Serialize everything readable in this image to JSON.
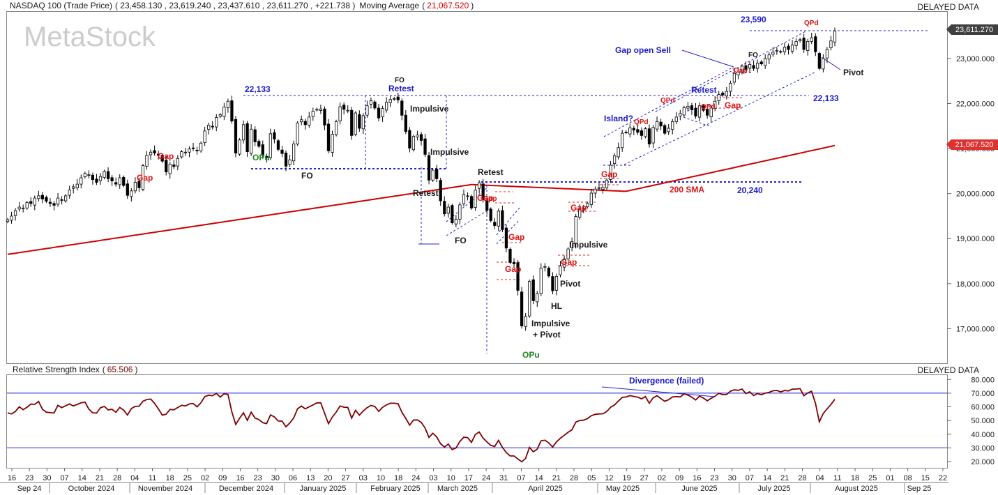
{
  "header": {
    "instrument": "NASDAQ 100 (Trade Price)",
    "ohlc": "( 23,458.130 , 23,619.240 , 23,437.610 , 23,611.270 , +221.738 )",
    "ma_label": "Moving Average",
    "ma_value": "21,067.520",
    "delayed": "DELAYED DATA",
    "watermark": "MetaStock"
  },
  "price_badges": {
    "last": "23,611.270",
    "ma": "21,067.520"
  },
  "rsi_header": {
    "label": "Relative Strength Index",
    "value": "65.506",
    "delayed": "DELAYED DATA"
  },
  "colors": {
    "bull": "#ffffff",
    "bear": "#000000",
    "ma": "#d00000",
    "blue": "#1a1acc",
    "red": "#e01010",
    "green": "#1a8a1a",
    "rsi": "#800000"
  },
  "chart_data": [
    {
      "type": "candlestick",
      "title": "NASDAQ 100 (Trade Price)",
      "ylim": [
        16400,
        24400
      ],
      "y_ticks": [
        "17,000.000",
        "18,000.000",
        "19,000.000",
        "20,000.000",
        "21,000.000",
        "22,000.000",
        "23,000.000"
      ],
      "x_day_labels": [
        "16",
        "23",
        "30",
        "07",
        "14",
        "21",
        "28",
        "04",
        "11",
        "18",
        "25",
        "02",
        "09",
        "16",
        "23",
        "30",
        "06",
        "13",
        "20",
        "27",
        "03",
        "10",
        "18",
        "24",
        "03",
        "10",
        "17",
        "24",
        "31",
        "07",
        "14",
        "21",
        "28",
        "05",
        "12",
        "19",
        "27",
        "02",
        "09",
        "16",
        "23",
        "30",
        "07",
        "14",
        "21",
        "28",
        "04",
        "11",
        "18",
        "25",
        "01",
        "08",
        "15",
        "22"
      ],
      "x_month_labels": [
        "Sep 24",
        "October 2024",
        "November 2024",
        "December 2024",
        "January 2025",
        "February 2025",
        "March 2025",
        "April 2025",
        "May 2025",
        "June 2025",
        "July 2025",
        "August 2025",
        "Sep 25"
      ],
      "closes": [
        19420,
        19500,
        19620,
        19700,
        19680,
        19800,
        19780,
        19900,
        19950,
        19880,
        19830,
        19780,
        19740,
        19900,
        19850,
        19950,
        20080,
        20150,
        20210,
        20350,
        20450,
        20420,
        20310,
        20250,
        20380,
        20490,
        20330,
        20280,
        20210,
        20350,
        20180,
        19960,
        20060,
        20250,
        20130,
        20620,
        20850,
        20920,
        20900,
        20850,
        20720,
        20480,
        20650,
        20600,
        20780,
        20930,
        20920,
        20990,
        21000,
        20960,
        21120,
        21390,
        21520,
        21480,
        21690,
        21750,
        21920,
        22050,
        21610,
        20900,
        21190,
        21530,
        20930,
        21430,
        21150,
        21050,
        20850,
        20800,
        21330,
        21210,
        20980,
        20890,
        20610,
        20750,
        21100,
        21570,
        21640,
        21530,
        21700,
        21830,
        21870,
        21880,
        21520,
        20950,
        21320,
        21600,
        21930,
        21870,
        21850,
        21290,
        21790,
        21450,
        21730,
        21950,
        22060,
        21900,
        21680,
        21890,
        22030,
        22090,
        22110,
        22080,
        21740,
        21380,
        21010,
        21270,
        21300,
        21180,
        20870,
        20300,
        20520,
        20330,
        19840,
        19550,
        19700,
        19350,
        19430,
        19750,
        19980,
        19950,
        19680,
        20080,
        20240,
        19860,
        19630,
        19400,
        19290,
        19610,
        19200,
        18790,
        18470,
        18440,
        17850,
        17060,
        17270,
        18050,
        17620,
        17780,
        18340,
        18380,
        18170,
        17840,
        18160,
        18390,
        18550,
        18770,
        18930,
        19490,
        19650,
        19670,
        19780,
        20010,
        20100,
        20130,
        20140,
        20300,
        20630,
        20840,
        21020,
        21340,
        21360,
        21460,
        21410,
        21360,
        21290,
        21440,
        21100,
        21470,
        21600,
        21500,
        21340,
        21450,
        21600,
        21700,
        21780,
        21910,
        21940,
        21860,
        21720,
        21950,
        21850,
        21740,
        21900,
        22050,
        22200,
        22190,
        22270,
        22450,
        22670,
        22700,
        22830,
        22750,
        22870,
        22780,
        22900,
        22880,
        23000,
        23080,
        23140,
        23180,
        23150,
        23250,
        23200,
        23300,
        23380,
        23420,
        23200,
        23380,
        23460,
        23150,
        22780,
        23000,
        23200,
        23390,
        23611.27
      ],
      "moving_average_last": 21067.52,
      "annotations": [
        "22,133",
        "FO",
        "Retest",
        "Impulsive",
        "Impulsive",
        "Retest",
        "Retest",
        "FO",
        "FO",
        "OPu",
        "Gap",
        "Gap",
        "Gap",
        "Gap",
        "Gap",
        "Gap",
        "Gap",
        "Gap",
        "Gap",
        "Gap",
        "Gap",
        "Impulsive",
        "Pivot",
        "HL",
        "Impulsive",
        "+ Pivot",
        "OPu",
        "Island?",
        "QPd",
        "QPd",
        "QPd",
        "QPd",
        "Retest",
        "Gap open Sell",
        "FO",
        "23,590",
        "Pivot",
        "22,133",
        "200 SMA",
        "20,240"
      ]
    },
    {
      "type": "line",
      "title": "Relative Strength Index",
      "ylim": [
        15,
        83
      ],
      "y_ticks": [
        "20.000",
        "30.000",
        "40.000",
        "50.000",
        "60.000",
        "70.000",
        "80.000"
      ],
      "reference_lines": [
        70,
        30
      ],
      "values": [
        55.5,
        54.8,
        56.6,
        60.0,
        57.9,
        59.7,
        62.0,
        61.8,
        63.9,
        58.1,
        56.1,
        55.7,
        55.5,
        61.1,
        59.4,
        60.7,
        62.1,
        60.6,
        61.8,
        62.9,
        63.4,
        58.3,
        55.6,
        55.4,
        59.3,
        60.3,
        57.7,
        58.2,
        56.0,
        59.5,
        57.6,
        54.0,
        58.7,
        60.3,
        60.4,
        64.1,
        65.3,
        65.7,
        62.5,
        58.5,
        53.9,
        54.6,
        58.1,
        57.8,
        59.5,
        61.1,
        60.6,
        62.1,
        62.4,
        60.0,
        63.0,
        67.4,
        68.5,
        68.1,
        69.9,
        67.1,
        69.6,
        69.0,
        56.4,
        47.1,
        51.6,
        55.6,
        50.1,
        56.1,
        51.8,
        50.7,
        48.4,
        47.7,
        54.1,
        52.6,
        49.6,
        49.5,
        45.4,
        48.2,
        51.8,
        58.6,
        60.5,
        58.5,
        60.0,
        61.4,
        62.9,
        62.9,
        55.3,
        47.6,
        52.5,
        56.2,
        60.6,
        59.7,
        59.6,
        51.7,
        57.4,
        53.9,
        57.0,
        59.4,
        61.0,
        60.2,
        56.7,
        59.6,
        61.4,
        62.6,
        62.6,
        62.3,
        56.0,
        51.6,
        46.6,
        50.3,
        50.4,
        48.6,
        44.5,
        37.6,
        40.7,
        38.0,
        33.0,
        30.6,
        32.8,
        28.7,
        30.0,
        34.7,
        37.8,
        37.5,
        34.0,
        39.8,
        41.6,
        37.1,
        34.3,
        31.8,
        31.0,
        35.5,
        30.4,
        26.6,
        24.1,
        24.1,
        21.9,
        19.8,
        22.3,
        30.4,
        27.1,
        29.0,
        35.2,
        35.6,
        33.6,
        30.6,
        34.4,
        37.0,
        39.2,
        41.4,
        43.2,
        48.8,
        50.0,
        50.2,
        51.4,
        53.5,
        54.5,
        54.8,
        54.9,
        56.6,
        59.7,
        61.3,
        64.2,
        66.9,
        67.2,
        68.2,
        67.6,
        67.1,
        65.8,
        67.5,
        62.6,
        66.5,
        68.1,
        66.0,
        64.0,
        65.2,
        67.2,
        67.5,
        67.2,
        69.5,
        68.6,
        67.0,
        65.0,
        67.8,
        66.4,
        64.4,
        66.2,
        67.7,
        69.9,
        68.9,
        69.0,
        71.4,
        72.4,
        72.1,
        73.0,
        69.7,
        71.0,
        68.2,
        69.7,
        68.8,
        70.0,
        70.6,
        71.7,
        72.0,
        70.9,
        71.9,
        71.6,
        72.9,
        73.0,
        73.3,
        68.1,
        70.2,
        71.4,
        62.5,
        49.0,
        55.1,
        58.4,
        61.7,
        65.5
      ]
    }
  ],
  "rsi_divergence_label": "Divergence (failed)"
}
